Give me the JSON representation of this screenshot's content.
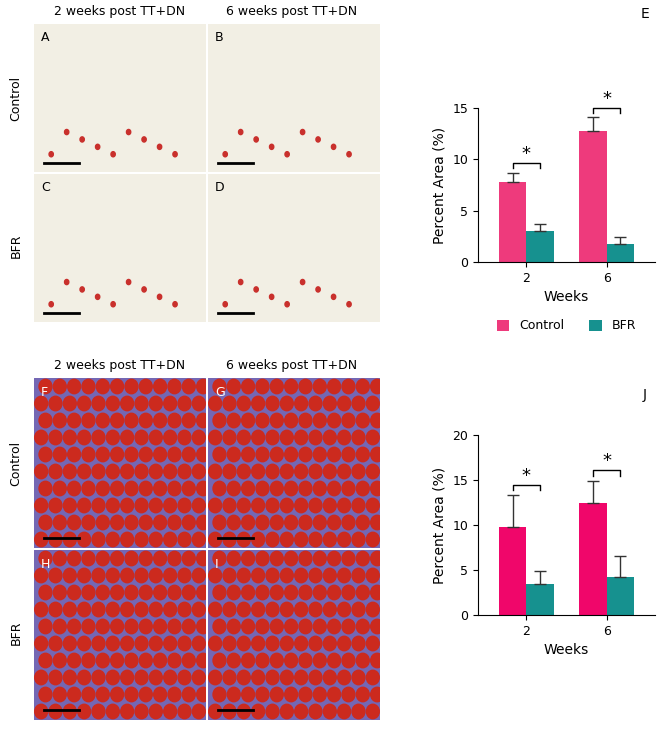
{
  "image_figures": [
    {
      "column_titles": [
        "2 weeks post TT+DN",
        "6 weeks post TT+DN"
      ],
      "row_labels": [
        "Control",
        "BFR"
      ],
      "panel_labels": [
        [
          "A",
          "B"
        ],
        [
          "C",
          "D"
        ]
      ]
    },
    {
      "column_titles": [
        "2 weeks post TT+DN",
        "6 weeks post TT+DN"
      ],
      "row_labels": [
        "Control",
        "BFR"
      ],
      "panel_labels": [
        [
          "F",
          "G"
        ],
        [
          "H",
          "I"
        ]
      ]
    }
  ],
  "chart_data": [
    {
      "type": "bar",
      "panel_label": "E",
      "categories": [
        "2",
        "6"
      ],
      "x_label": "Weeks",
      "y_label": "Percent Area (%)",
      "ylim": [
        0,
        15
      ],
      "yticks": [
        0,
        5,
        10,
        15
      ],
      "series": [
        {
          "name": "Control",
          "color": "#ee3a7c",
          "values": [
            7.8,
            12.8
          ],
          "errors": [
            0.9,
            1.3
          ]
        },
        {
          "name": "BFR",
          "color": "#16918f",
          "values": [
            3.0,
            1.8
          ],
          "errors": [
            0.7,
            0.6
          ]
        }
      ],
      "annotations": [
        {
          "category": "2",
          "label": "*"
        },
        {
          "category": "6",
          "label": "*"
        }
      ],
      "legend": "bottom"
    },
    {
      "type": "bar",
      "panel_label": "J",
      "categories": [
        "2",
        "6"
      ],
      "x_label": "Weeks",
      "y_label": "Percent Area (%)",
      "ylim": [
        0,
        20
      ],
      "yticks": [
        0,
        5,
        10,
        15,
        20
      ],
      "series": [
        {
          "color": "#f0066a",
          "values": [
            9.8,
            12.5
          ],
          "errors": [
            3.5,
            2.4
          ]
        },
        {
          "color": "#16918f",
          "values": [
            3.5,
            4.2
          ],
          "errors": [
            1.4,
            2.4
          ]
        }
      ],
      "annotations": [
        {
          "category": "2",
          "label": "*"
        },
        {
          "category": "6",
          "label": "*"
        }
      ]
    }
  ]
}
